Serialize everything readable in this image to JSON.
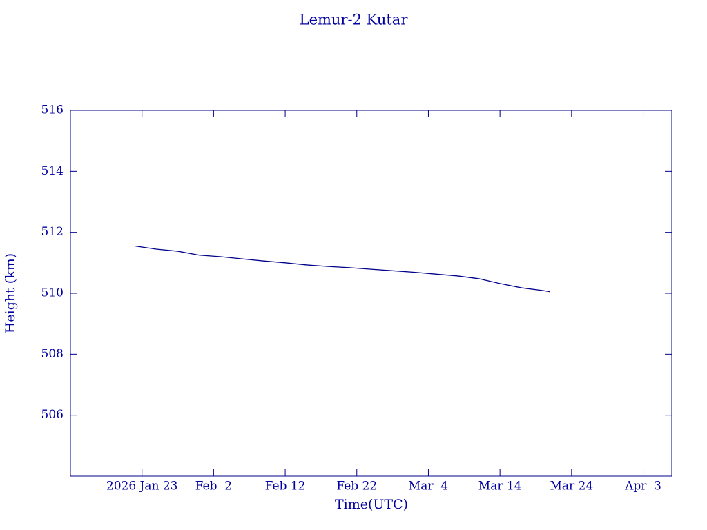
{
  "chart_data": {
    "type": "line",
    "title": "Lemur-2 Kutar",
    "x_label": "Time(UTC)",
    "y_label": "Height (km)",
    "color": "#00008b",
    "x": [
      "2026-01-22",
      "2026-01-25",
      "2026-01-28",
      "2026-01-31",
      "2026-02-03",
      "2026-02-06",
      "2026-02-09",
      "2026-02-12",
      "2026-02-15",
      "2026-02-18",
      "2026-02-21",
      "2026-02-24",
      "2026-02-27",
      "2026-03-02",
      "2026-03-05",
      "2026-03-08",
      "2026-03-11",
      "2026-03-14",
      "2026-03-17",
      "2026-03-20",
      "2026-03-21"
    ],
    "values": [
      511.55,
      511.45,
      511.38,
      511.25,
      511.2,
      511.13,
      511.06,
      511.0,
      510.93,
      510.88,
      510.84,
      510.79,
      510.74,
      510.69,
      510.63,
      510.57,
      510.48,
      510.32,
      510.18,
      510.09,
      510.05
    ],
    "xlim": [
      "2026-01-13",
      "2026-04-07"
    ],
    "xticks": [
      {
        "value": "2026-01-23",
        "label": "2026 Jan 23"
      },
      {
        "value": "2026-02-02",
        "label": "Feb  2"
      },
      {
        "value": "2026-02-12",
        "label": "Feb 12"
      },
      {
        "value": "2026-02-22",
        "label": "Feb 22"
      },
      {
        "value": "2026-03-04",
        "label": "Mar  4"
      },
      {
        "value": "2026-03-14",
        "label": "Mar 14"
      },
      {
        "value": "2026-03-24",
        "label": "Mar 24"
      },
      {
        "value": "2026-04-03",
        "label": "Apr  3"
      }
    ],
    "ylim": [
      504,
      516
    ],
    "yticks": [
      506,
      508,
      510,
      512,
      514,
      516
    ]
  }
}
